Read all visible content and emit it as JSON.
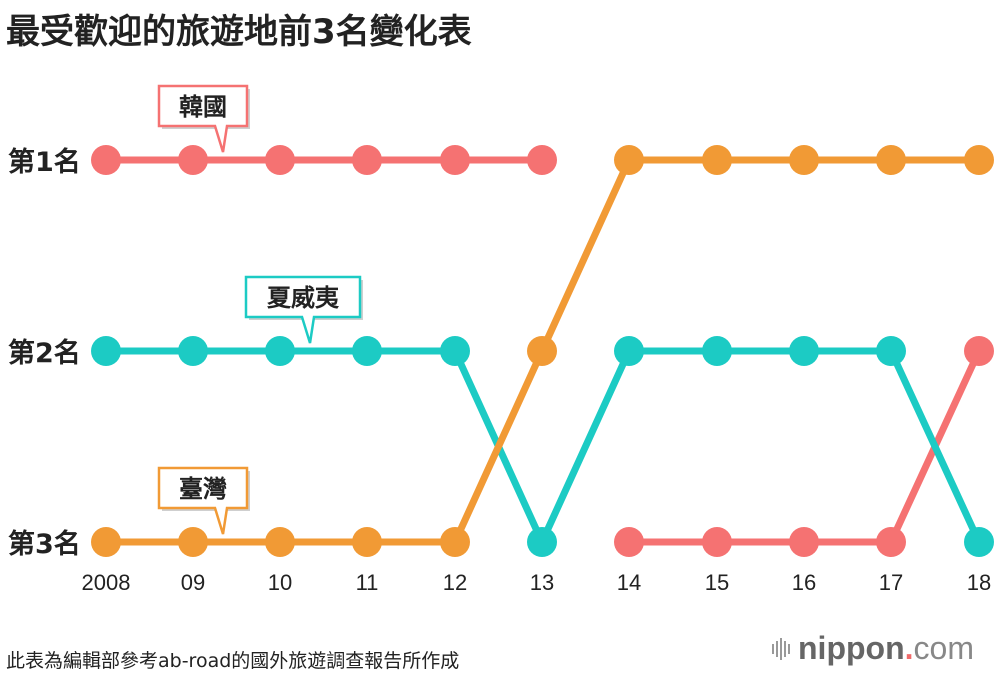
{
  "title": "最受歡迎的旅遊地前3名變化表",
  "source_note": "此表為編輯部參考ab-road的國外旅遊調查報告所作成",
  "brand": {
    "name": "nippon",
    "dot": ".",
    "suffix": "com"
  },
  "chart_data": {
    "type": "line",
    "title": "最受歡迎的旅遊地前3名變化表",
    "categories": [
      "2008",
      "09",
      "10",
      "11",
      "12",
      "13",
      "14",
      "15",
      "16",
      "17",
      "18"
    ],
    "y_labels": [
      "第1名",
      "第2名",
      "第3名"
    ],
    "ylim": [
      1,
      3
    ],
    "y_inverted": true,
    "series": [
      {
        "name": "韓國",
        "color": "#f57272",
        "values": [
          1,
          1,
          1,
          1,
          1,
          1,
          3,
          3,
          3,
          3,
          2
        ],
        "gaps_after": [
          5
        ],
        "callout_index": 1
      },
      {
        "name": "夏威夷",
        "color": "#1ccbc4",
        "values": [
          2,
          2,
          2,
          2,
          2,
          3,
          2,
          2,
          2,
          2,
          3
        ],
        "gaps_after": [],
        "callout_index": 2
      },
      {
        "name": "臺灣",
        "color": "#f19a35",
        "values": [
          3,
          3,
          3,
          3,
          3,
          2,
          1,
          1,
          1,
          1,
          1
        ],
        "gaps_after": [],
        "callout_index": 1
      }
    ]
  }
}
